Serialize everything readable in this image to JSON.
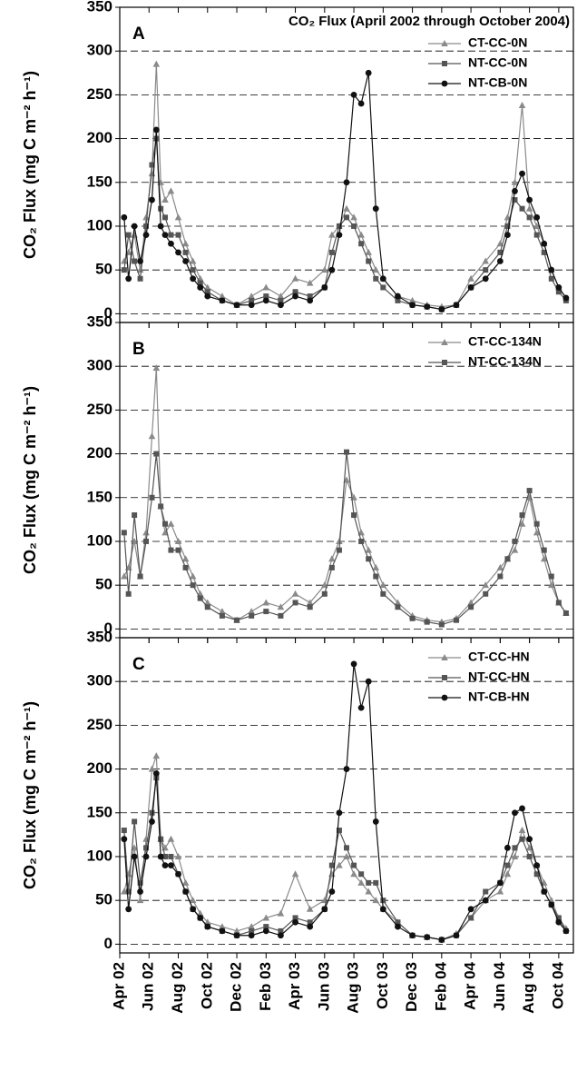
{
  "chart_data": [
    {
      "type": "line",
      "title": "CO₂ Flux (April 2002 through October 2004)",
      "panel_label": "A",
      "y_label": "CO₂ Flux (mg C m⁻² h⁻¹)",
      "legend": "upper right",
      "grid": true,
      "ylim": [
        -10,
        350
      ],
      "yticks": [
        0,
        50,
        100,
        150,
        200,
        250,
        300,
        350
      ],
      "xlim": [
        0,
        31
      ],
      "xticks": [
        0,
        2,
        4,
        6,
        8,
        10,
        12,
        14,
        16,
        18,
        20,
        22,
        24,
        26,
        28,
        30
      ],
      "x": [
        0.3,
        0.6,
        1.0,
        1.4,
        1.8,
        2.2,
        2.5,
        2.8,
        3.1,
        3.5,
        4.0,
        4.5,
        5.0,
        5.5,
        6.0,
        7.0,
        8.0,
        9.0,
        10.0,
        11.0,
        12.0,
        13.0,
        14.0,
        14.5,
        15.0,
        15.5,
        16.0,
        16.5,
        17.0,
        17.5,
        18.0,
        19.0,
        20.0,
        21.0,
        22.0,
        23.0,
        24.0,
        25.0,
        26.0,
        26.5,
        27.0,
        27.5,
        28.0,
        28.5,
        29.0,
        29.5,
        30.0,
        30.5
      ],
      "series": [
        {
          "name": "CT-CC-0N",
          "color": "#8a8a8a",
          "marker": "triangle",
          "values": [
            60,
            70,
            90,
            50,
            110,
            160,
            285,
            150,
            130,
            140,
            110,
            80,
            60,
            40,
            30,
            20,
            10,
            20,
            30,
            20,
            40,
            35,
            50,
            90,
            100,
            120,
            110,
            90,
            70,
            50,
            40,
            20,
            15,
            10,
            8,
            10,
            40,
            60,
            80,
            110,
            150,
            238,
            120,
            100,
            80,
            50,
            30,
            18
          ]
        },
        {
          "name": "NT-CC-0N",
          "color": "#555555",
          "marker": "square",
          "values": [
            50,
            90,
            60,
            40,
            100,
            170,
            200,
            120,
            110,
            90,
            90,
            70,
            50,
            35,
            25,
            15,
            10,
            15,
            20,
            15,
            25,
            20,
            30,
            70,
            100,
            110,
            100,
            80,
            60,
            40,
            30,
            15,
            10,
            8,
            5,
            10,
            30,
            50,
            70,
            100,
            130,
            120,
            110,
            90,
            70,
            40,
            25,
            15
          ]
        },
        {
          "name": "NT-CB-0N",
          "color": "#111111",
          "marker": "circle",
          "values": [
            110,
            40,
            100,
            60,
            90,
            130,
            210,
            100,
            90,
            80,
            70,
            60,
            40,
            30,
            20,
            15,
            10,
            10,
            15,
            10,
            20,
            15,
            30,
            50,
            90,
            150,
            250,
            240,
            275,
            120,
            40,
            20,
            10,
            8,
            5,
            10,
            30,
            40,
            60,
            90,
            140,
            160,
            130,
            110,
            80,
            50,
            30,
            18
          ]
        }
      ]
    },
    {
      "type": "line",
      "panel_label": "B",
      "y_label": "CO₂ Flux (mg C m⁻² h⁻¹)",
      "legend": "upper right",
      "grid": true,
      "ylim": [
        -10,
        350
      ],
      "yticks": [
        0,
        50,
        100,
        150,
        200,
        250,
        300,
        350
      ],
      "xlim": [
        0,
        31
      ],
      "xticks": [
        0,
        2,
        4,
        6,
        8,
        10,
        12,
        14,
        16,
        18,
        20,
        22,
        24,
        26,
        28,
        30
      ],
      "x": [
        0.3,
        0.6,
        1.0,
        1.4,
        1.8,
        2.2,
        2.5,
        2.8,
        3.1,
        3.5,
        4.0,
        4.5,
        5.0,
        5.5,
        6.0,
        7.0,
        8.0,
        9.0,
        10.0,
        11.0,
        12.0,
        13.0,
        14.0,
        14.5,
        15.0,
        15.5,
        16.0,
        16.5,
        17.0,
        17.5,
        18.0,
        19.0,
        20.0,
        21.0,
        22.0,
        23.0,
        24.0,
        25.0,
        26.0,
        26.5,
        27.0,
        27.5,
        28.0,
        28.5,
        29.0,
        29.5,
        30.0,
        30.5
      ],
      "series": [
        {
          "name": "CT-CC-134N",
          "color": "#8a8a8a",
          "marker": "triangle",
          "values": [
            60,
            70,
            100,
            60,
            110,
            220,
            298,
            140,
            110,
            120,
            100,
            80,
            60,
            40,
            30,
            20,
            10,
            20,
            30,
            25,
            40,
            30,
            50,
            80,
            100,
            170,
            150,
            110,
            90,
            70,
            50,
            30,
            15,
            10,
            8,
            12,
            30,
            50,
            70,
            80,
            90,
            120,
            150,
            110,
            80,
            50,
            30,
            18
          ]
        },
        {
          "name": "NT-CC-134N",
          "color": "#555555",
          "marker": "square",
          "values": [
            110,
            40,
            130,
            60,
            100,
            150,
            200,
            140,
            120,
            90,
            90,
            70,
            50,
            35,
            25,
            15,
            10,
            15,
            20,
            15,
            30,
            25,
            40,
            70,
            90,
            202,
            130,
            100,
            80,
            60,
            40,
            25,
            12,
            8,
            5,
            10,
            25,
            40,
            60,
            80,
            100,
            130,
            158,
            120,
            90,
            60,
            30,
            18
          ]
        }
      ]
    },
    {
      "type": "line",
      "panel_label": "C",
      "y_label": "CO₂ Flux (mg C m⁻² h⁻¹)",
      "legend": "upper right",
      "grid": true,
      "ylim": [
        -10,
        350
      ],
      "yticks": [
        0,
        50,
        100,
        150,
        200,
        250,
        300,
        350
      ],
      "xlim": [
        0,
        31
      ],
      "xticks": [
        {
          "value": 0,
          "label": "Apr 02"
        },
        {
          "value": 2,
          "label": "Jun 02"
        },
        {
          "value": 4,
          "label": "Aug 02"
        },
        {
          "value": 6,
          "label": "Oct 02"
        },
        {
          "value": 8,
          "label": "Dec 02"
        },
        {
          "value": 10,
          "label": "Feb 03"
        },
        {
          "value": 12,
          "label": "Apr 03"
        },
        {
          "value": 14,
          "label": "Jun 03"
        },
        {
          "value": 16,
          "label": "Aug 03"
        },
        {
          "value": 18,
          "label": "Oct 03"
        },
        {
          "value": 20,
          "label": "Dec 03"
        },
        {
          "value": 22,
          "label": "Feb 04"
        },
        {
          "value": 24,
          "label": "Apr 04"
        },
        {
          "value": 26,
          "label": "Jun 04"
        },
        {
          "value": 28,
          "label": "Aug 04"
        },
        {
          "value": 30,
          "label": "Oct 04"
        }
      ],
      "x": [
        0.3,
        0.6,
        1.0,
        1.4,
        1.8,
        2.2,
        2.5,
        2.8,
        3.1,
        3.5,
        4.0,
        4.5,
        5.0,
        5.5,
        6.0,
        7.0,
        8.0,
        9.0,
        10.0,
        11.0,
        12.0,
        13.0,
        14.0,
        14.5,
        15.0,
        15.5,
        16.0,
        16.5,
        17.0,
        17.5,
        18.0,
        19.0,
        20.0,
        21.0,
        22.0,
        23.0,
        24.0,
        25.0,
        26.0,
        26.5,
        27.0,
        27.5,
        28.0,
        28.5,
        29.0,
        29.5,
        30.0,
        30.5
      ],
      "series": [
        {
          "name": "CT-CC-HN",
          "color": "#8a8a8a",
          "marker": "triangle",
          "values": [
            60,
            80,
            110,
            50,
            120,
            200,
            215,
            120,
            110,
            120,
            100,
            70,
            50,
            35,
            25,
            20,
            15,
            20,
            30,
            35,
            80,
            40,
            50,
            80,
            90,
            100,
            80,
            70,
            60,
            50,
            40,
            25,
            10,
            8,
            5,
            12,
            30,
            50,
            60,
            80,
            100,
            130,
            110,
            90,
            70,
            50,
            30,
            18
          ]
        },
        {
          "name": "NT-CC-HN",
          "color": "#555555",
          "marker": "square",
          "values": [
            130,
            60,
            140,
            70,
            110,
            150,
            190,
            120,
            100,
            100,
            80,
            60,
            40,
            30,
            20,
            15,
            10,
            15,
            20,
            15,
            30,
            25,
            40,
            90,
            130,
            110,
            90,
            80,
            70,
            70,
            50,
            25,
            10,
            8,
            5,
            10,
            30,
            60,
            70,
            90,
            110,
            120,
            100,
            80,
            60,
            45,
            30,
            15
          ]
        },
        {
          "name": "NT-CB-HN",
          "color": "#111111",
          "marker": "circle",
          "values": [
            120,
            40,
            100,
            60,
            100,
            140,
            195,
            100,
            90,
            90,
            80,
            60,
            40,
            30,
            20,
            15,
            10,
            10,
            15,
            10,
            25,
            20,
            40,
            60,
            150,
            200,
            320,
            270,
            300,
            140,
            40,
            20,
            10,
            8,
            5,
            10,
            40,
            50,
            70,
            110,
            150,
            155,
            120,
            90,
            60,
            45,
            25,
            15
          ]
        }
      ]
    }
  ]
}
